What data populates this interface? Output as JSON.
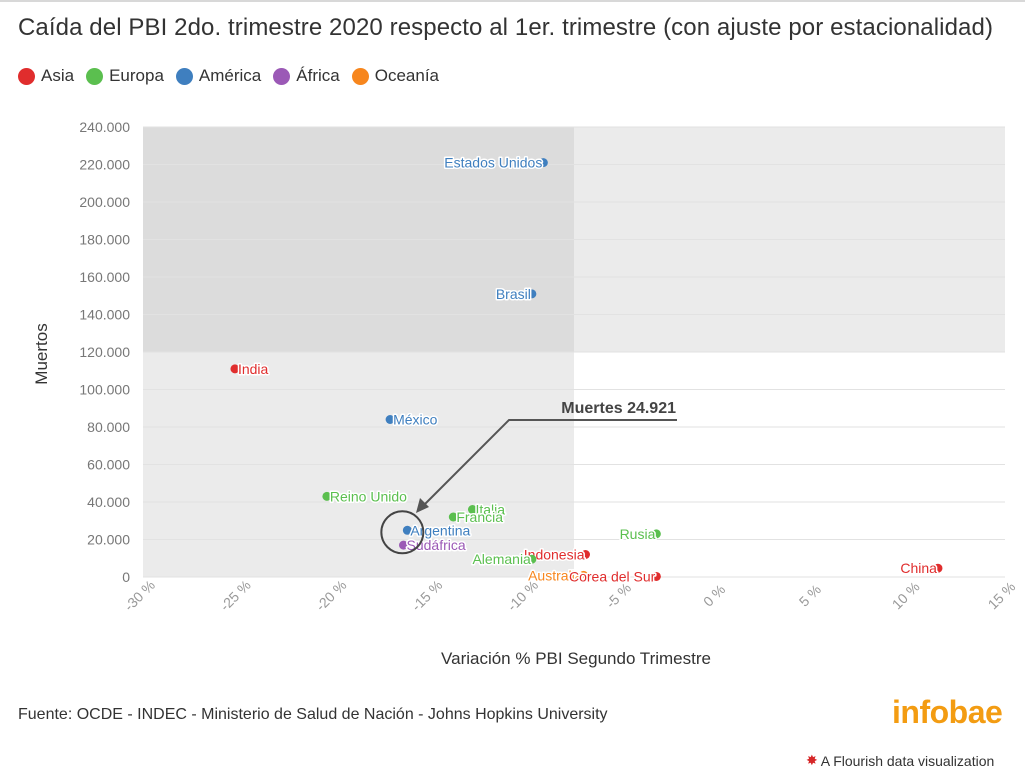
{
  "header": {
    "title": "Caída del PBI 2do. trimestre 2020 respecto al 1er. trimestre (con ajuste por estacionalidad)"
  },
  "legend": [
    {
      "label": "Asia",
      "color": "#e02d2d"
    },
    {
      "label": "Europa",
      "color": "#5bbf4f"
    },
    {
      "label": "América",
      "color": "#3f7fbf"
    },
    {
      "label": "África",
      "color": "#9b59b6"
    },
    {
      "label": "Oceanía",
      "color": "#f7861d"
    }
  ],
  "footer": {
    "source": "Fuente: OCDE - INDEC - Ministerio de Salud de Nación - Johns Hopkins University",
    "brand": "infobae",
    "flourish": "A Flourish data visualization"
  },
  "chart_data": {
    "type": "scatter",
    "xlabel": "Variación % PBI Segundo Trimestre",
    "ylabel": "Muertos",
    "xlim": [
      -30,
      15
    ],
    "ylim": [
      0,
      240000
    ],
    "x_ticks": [
      -30,
      -25,
      -20,
      -15,
      -10,
      -5,
      0,
      5,
      10,
      15
    ],
    "x_tick_labels": [
      "-30 %",
      "-25 %",
      "-20 %",
      "-15 %",
      "-10 %",
      "-5 %",
      "0 %",
      "5 %",
      "10 %",
      "15 %"
    ],
    "y_ticks": [
      0,
      20000,
      40000,
      60000,
      80000,
      100000,
      120000,
      140000,
      160000,
      180000,
      200000,
      220000,
      240000
    ],
    "y_tick_labels": [
      "0",
      "20.000",
      "40.000",
      "60.000",
      "80.000",
      "100.000",
      "120.000",
      "140.000",
      "160.000",
      "180.000",
      "200.000",
      "220.000",
      "240.000"
    ],
    "shaded_regions": [
      {
        "x": [
          -30,
          15
        ],
        "y": [
          120000,
          240000
        ],
        "color": "#ebebeb"
      },
      {
        "x": [
          -30,
          -7.5
        ],
        "y": [
          0,
          240000
        ],
        "color": "#ebebeb"
      }
    ],
    "grid": true,
    "legend_position": "top-left",
    "annotation": {
      "text": "Muertes 24.921",
      "target": "Argentina"
    },
    "points": [
      {
        "label": "Estados Unidos",
        "x": -9.1,
        "y": 221000,
        "group": "América",
        "label_side": "left"
      },
      {
        "label": "Brasil",
        "x": -9.7,
        "y": 151000,
        "group": "América",
        "label_side": "left"
      },
      {
        "label": "India",
        "x": -25.2,
        "y": 111000,
        "group": "Asia",
        "label_side": "right"
      },
      {
        "label": "México",
        "x": -17.1,
        "y": 84000,
        "group": "América",
        "label_side": "right"
      },
      {
        "label": "Reino Unido",
        "x": -20.4,
        "y": 43000,
        "group": "Europa",
        "label_side": "right"
      },
      {
        "label": "Italia",
        "x": -12.8,
        "y": 36000,
        "group": "Europa",
        "label_side": "right"
      },
      {
        "label": "Francia",
        "x": -13.8,
        "y": 32000,
        "group": "Europa",
        "label_side": "right"
      },
      {
        "label": "Argentina",
        "x": -16.2,
        "y": 24921,
        "group": "América",
        "label_side": "right"
      },
      {
        "label": "Sudáfrica",
        "x": -16.4,
        "y": 17000,
        "group": "África",
        "label_side": "right"
      },
      {
        "label": "Rusia",
        "x": -3.2,
        "y": 23000,
        "group": "Europa",
        "label_side": "left"
      },
      {
        "label": "Indonesia",
        "x": -6.9,
        "y": 12000,
        "group": "Asia",
        "label_side": "left"
      },
      {
        "label": "Alemania",
        "x": -9.7,
        "y": 9500,
        "group": "Europa",
        "label_side": "left"
      },
      {
        "label": "Australia",
        "x": -7.0,
        "y": 900,
        "group": "Oceanía",
        "label_side": "left"
      },
      {
        "label": "Corea del Sur",
        "x": -3.2,
        "y": 300,
        "group": "Asia",
        "label_side": "left"
      },
      {
        "label": "China",
        "x": 11.5,
        "y": 4700,
        "group": "Asia",
        "label_side": "left"
      }
    ]
  }
}
